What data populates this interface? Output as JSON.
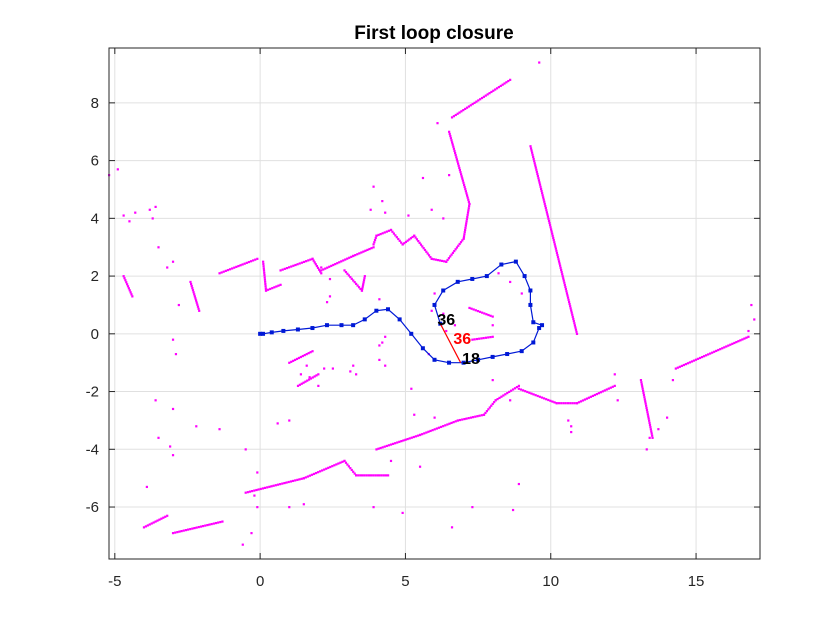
{
  "chart_data": {
    "type": "scatter",
    "title": "First loop closure",
    "xlabel": "",
    "ylabel": "",
    "xlim": [
      -5.2,
      17.2
    ],
    "ylim": [
      -7.8,
      9.9
    ],
    "xticks": [
      -5,
      0,
      5,
      10,
      15
    ],
    "yticks": [
      8,
      6,
      4,
      2,
      0,
      -2,
      -4,
      -6
    ],
    "xtick_labels": [
      "-5",
      "0",
      "5",
      "10",
      "15"
    ],
    "ytick_labels": [
      "8",
      "6",
      "4",
      "2",
      "0",
      "-2",
      "-4",
      "-6"
    ],
    "grid": true,
    "colors": {
      "trajectory": "#0019d6",
      "scan_points": "#ff00ff",
      "loop_edge": "#ff0000",
      "node_label": "#000000",
      "loop_label": "#ff0000",
      "grid": "#e0e0e0",
      "axes": "#262626"
    },
    "series": [
      {
        "kind": "trajectory",
        "x": [
          0.0,
          0.1,
          0.4,
          0.8,
          1.3,
          1.8,
          2.3,
          2.8,
          3.2,
          3.6,
          4.0,
          4.4,
          4.8,
          5.2,
          5.6,
          6.0,
          6.5,
          7.0,
          7.5,
          8.0,
          8.5,
          9.0,
          9.4,
          9.6,
          9.7,
          9.4,
          9.3,
          9.3,
          9.1,
          8.8,
          8.3,
          7.8,
          7.3,
          6.8,
          6.3,
          6.0,
          6.2
        ],
        "y": [
          0.0,
          0.0,
          0.05,
          0.1,
          0.15,
          0.2,
          0.3,
          0.3,
          0.3,
          0.5,
          0.8,
          0.85,
          0.5,
          0.0,
          -0.5,
          -0.9,
          -1.0,
          -1.0,
          -0.9,
          -0.8,
          -0.7,
          -0.6,
          -0.3,
          0.2,
          0.3,
          0.4,
          1.0,
          1.5,
          2.0,
          2.5,
          2.4,
          2.0,
          1.9,
          1.8,
          1.5,
          1.0,
          0.35
        ]
      }
    ],
    "loop_closure": {
      "from": [
        6.2,
        0.35
      ],
      "to": [
        6.9,
        -1.0
      ]
    },
    "annotations": [
      {
        "text": "36",
        "x": 6.1,
        "y": 0.3,
        "color": "#000000"
      },
      {
        "text": "36",
        "x": 6.65,
        "y": -0.35,
        "color": "#ff0000"
      },
      {
        "text": "18",
        "x": 6.95,
        "y": -1.05,
        "color": "#000000"
      }
    ],
    "scan_segments": [
      [
        [
          -1.4,
          2.1
        ],
        [
          -0.1,
          2.6
        ]
      ],
      [
        [
          0.1,
          2.5
        ],
        [
          0.2,
          1.5
        ]
      ],
      [
        [
          0.2,
          1.5
        ],
        [
          0.7,
          1.7
        ]
      ],
      [
        [
          0.7,
          2.2
        ],
        [
          1.8,
          2.6
        ]
      ],
      [
        [
          1.8,
          2.6
        ],
        [
          2.1,
          2.1
        ]
      ],
      [
        [
          2.1,
          2.2
        ],
        [
          3.2,
          2.7
        ]
      ],
      [
        [
          3.2,
          2.7
        ],
        [
          3.9,
          3.0
        ]
      ],
      [
        [
          3.9,
          3.1
        ],
        [
          4.0,
          3.4
        ]
      ],
      [
        [
          4.0,
          3.4
        ],
        [
          4.5,
          3.6
        ]
      ],
      [
        [
          4.5,
          3.6
        ],
        [
          4.9,
          3.1
        ]
      ],
      [
        [
          4.9,
          3.1
        ],
        [
          5.3,
          3.4
        ]
      ],
      [
        [
          5.3,
          3.4
        ],
        [
          5.9,
          2.6
        ]
      ],
      [
        [
          5.9,
          2.6
        ],
        [
          6.4,
          2.5
        ]
      ],
      [
        [
          6.4,
          2.5
        ],
        [
          7.0,
          3.3
        ]
      ],
      [
        [
          7.0,
          3.3
        ],
        [
          7.2,
          4.5
        ]
      ],
      [
        [
          7.2,
          4.5
        ],
        [
          6.5,
          7.0
        ]
      ],
      [
        [
          6.6,
          7.5
        ],
        [
          8.6,
          8.8
        ]
      ],
      [
        [
          9.3,
          6.5
        ],
        [
          10.9,
          0.0
        ]
      ],
      [
        [
          -0.5,
          -5.5
        ],
        [
          1.5,
          -5.0
        ]
      ],
      [
        [
          1.5,
          -5.0
        ],
        [
          2.9,
          -4.4
        ]
      ],
      [
        [
          2.9,
          -4.4
        ],
        [
          3.3,
          -4.9
        ]
      ],
      [
        [
          3.3,
          -4.9
        ],
        [
          4.4,
          -4.9
        ]
      ],
      [
        [
          4.0,
          -4.0
        ],
        [
          5.5,
          -3.5
        ]
      ],
      [
        [
          5.5,
          -3.5
        ],
        [
          6.8,
          -3.0
        ]
      ],
      [
        [
          6.8,
          -3.0
        ],
        [
          7.7,
          -2.8
        ]
      ],
      [
        [
          7.7,
          -2.8
        ],
        [
          8.1,
          -2.3
        ]
      ],
      [
        [
          8.1,
          -2.3
        ],
        [
          8.9,
          -1.8
        ]
      ],
      [
        [
          8.9,
          -1.9
        ],
        [
          10.2,
          -2.4
        ]
      ],
      [
        [
          10.2,
          -2.4
        ],
        [
          10.9,
          -2.4
        ]
      ],
      [
        [
          10.9,
          -2.4
        ],
        [
          12.2,
          -1.8
        ]
      ],
      [
        [
          13.1,
          -1.6
        ],
        [
          13.5,
          -3.6
        ]
      ],
      [
        [
          14.3,
          -1.2
        ],
        [
          16.8,
          -0.1
        ]
      ],
      [
        [
          -4.0,
          -6.7
        ],
        [
          -3.2,
          -6.3
        ]
      ],
      [
        [
          -3.0,
          -6.9
        ],
        [
          -1.3,
          -6.5
        ]
      ],
      [
        [
          7.2,
          0.9
        ],
        [
          8.0,
          0.6
        ]
      ],
      [
        [
          7.3,
          -0.2
        ],
        [
          8.0,
          -0.1
        ]
      ],
      [
        [
          2.9,
          2.2
        ],
        [
          3.5,
          1.5
        ]
      ],
      [
        [
          3.5,
          1.5
        ],
        [
          3.6,
          2.0
        ]
      ],
      [
        [
          -4.4,
          1.3
        ],
        [
          -4.7,
          2.0
        ]
      ],
      [
        [
          -2.4,
          1.8
        ],
        [
          -2.1,
          0.8
        ]
      ],
      [
        [
          1.0,
          -1.0
        ],
        [
          1.8,
          -0.6
        ]
      ],
      [
        [
          2.0,
          -1.4
        ],
        [
          1.3,
          -1.8
        ]
      ]
    ],
    "scan_points": [
      [
        -5.2,
        5.5
      ],
      [
        -4.9,
        5.7
      ],
      [
        -4.7,
        4.1
      ],
      [
        -4.5,
        3.9
      ],
      [
        -4.3,
        4.2
      ],
      [
        -3.8,
        4.3
      ],
      [
        -3.7,
        4.0
      ],
      [
        -3.6,
        4.4
      ],
      [
        -3.5,
        3.0
      ],
      [
        -3.2,
        2.3
      ],
      [
        -3.0,
        2.5
      ],
      [
        -2.8,
        1.0
      ],
      [
        -3.0,
        -0.2
      ],
      [
        -2.9,
        -0.7
      ],
      [
        -3.0,
        -2.6
      ],
      [
        -3.5,
        -3.6
      ],
      [
        -3.1,
        -3.9
      ],
      [
        -3.0,
        -4.2
      ],
      [
        -3.9,
        -5.3
      ],
      [
        -2.2,
        -3.2
      ],
      [
        -1.4,
        -3.3
      ],
      [
        -0.5,
        -4.0
      ],
      [
        -0.2,
        -5.6
      ],
      [
        -0.1,
        -6.0
      ],
      [
        -0.3,
        -6.9
      ],
      [
        -0.6,
        -7.3
      ],
      [
        -0.1,
        -4.8
      ],
      [
        1.0,
        -6.0
      ],
      [
        1.5,
        -5.9
      ],
      [
        3.9,
        -6.0
      ],
      [
        4.9,
        -6.2
      ],
      [
        5.5,
        -4.6
      ],
      [
        6.6,
        -6.7
      ],
      [
        7.3,
        -6.0
      ],
      [
        8.7,
        -6.1
      ],
      [
        8.9,
        -5.2
      ],
      [
        10.6,
        -3.0
      ],
      [
        10.7,
        -3.4
      ],
      [
        12.2,
        -1.4
      ],
      [
        13.3,
        -4.0
      ],
      [
        13.4,
        -3.6
      ],
      [
        13.7,
        -3.3
      ],
      [
        14.0,
        -2.9
      ],
      [
        16.8,
        0.1
      ],
      [
        17.0,
        0.5
      ],
      [
        16.9,
        1.0
      ],
      [
        2.3,
        1.1
      ],
      [
        2.4,
        1.3
      ],
      [
        4.1,
        1.2
      ],
      [
        3.8,
        4.3
      ],
      [
        3.9,
        5.1
      ],
      [
        4.2,
        4.6
      ],
      [
        4.3,
        4.2
      ],
      [
        5.1,
        4.1
      ],
      [
        5.6,
        5.4
      ],
      [
        5.9,
        4.3
      ],
      [
        6.3,
        4.0
      ],
      [
        6.5,
        5.5
      ],
      [
        6.1,
        7.3
      ],
      [
        9.6,
        9.4
      ],
      [
        4.1,
        -0.4
      ],
      [
        4.1,
        -0.9
      ],
      [
        4.3,
        -1.1
      ],
      [
        4.3,
        -0.1
      ],
      [
        4.2,
        -0.3
      ],
      [
        3.1,
        -1.3
      ],
      [
        3.2,
        -1.1
      ],
      [
        3.3,
        -1.4
      ],
      [
        1.4,
        -1.4
      ],
      [
        1.6,
        -1.1
      ],
      [
        1.7,
        -1.5
      ],
      [
        2.0,
        -1.8
      ],
      [
        2.2,
        -1.2
      ],
      [
        2.5,
        -1.2
      ],
      [
        4.5,
        -4.4
      ],
      [
        5.2,
        -1.9
      ],
      [
        5.8,
        -0.7
      ],
      [
        5.9,
        0.8
      ],
      [
        6.0,
        1.4
      ],
      [
        6.3,
        0.7
      ],
      [
        6.7,
        0.3
      ],
      [
        6.4,
        0.1
      ],
      [
        8.0,
        0.3
      ],
      [
        8.0,
        -1.6
      ],
      [
        8.6,
        -2.3
      ],
      [
        10.7,
        -3.2
      ],
      [
        12.3,
        -2.3
      ],
      [
        14.2,
        -1.6
      ],
      [
        0.6,
        -3.1
      ],
      [
        1.0,
        -3.0
      ],
      [
        -3.6,
        -2.3
      ],
      [
        2.1,
        2.3
      ],
      [
        2.4,
        1.9
      ],
      [
        8.2,
        2.1
      ],
      [
        8.6,
        1.8
      ],
      [
        9.0,
        1.4
      ],
      [
        5.3,
        -2.8
      ],
      [
        6.0,
        -2.9
      ]
    ]
  }
}
